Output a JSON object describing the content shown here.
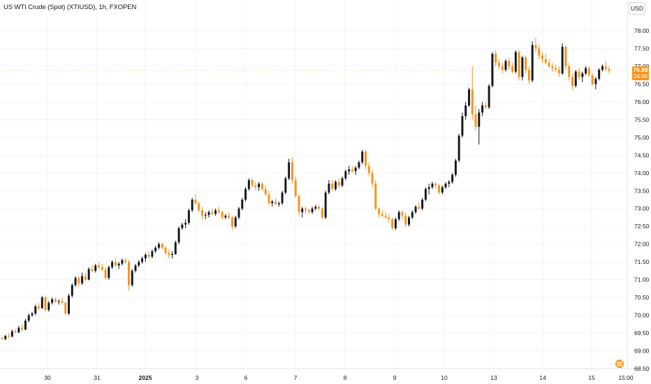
{
  "header": {
    "title": "US WTI Crude (Spot) (XTIUSD), 1h, FXOPEN",
    "currency": "USD"
  },
  "price_tag": {
    "price": "76.88",
    "countdown": "24:06"
  },
  "colors": {
    "up": "#131722",
    "down": "#f7931a",
    "price_line": "#f5d39a",
    "grid": "#f0f3fa",
    "axis_text": "#131722"
  },
  "chart_data": {
    "type": "candlestick",
    "title": "US WTI Crude (Spot) (XTIUSD), 1h, FXOPEN",
    "ylabel": "USD",
    "ylim": [
      68.5,
      78.3
    ],
    "y_ticks": [
      "78.00",
      "77.50",
      "77.00",
      "76.50",
      "76.00",
      "75.50",
      "75.00",
      "74.50",
      "74.00",
      "73.50",
      "73.00",
      "72.50",
      "72.00",
      "71.50",
      "71.00",
      "70.50",
      "70.00",
      "69.50",
      "69.00",
      "68.50"
    ],
    "x_ticks": [
      "30",
      "31",
      "2025",
      "3",
      "6",
      "7",
      "8",
      "9",
      "10",
      "13",
      "14",
      "15",
      "15:00"
    ],
    "last_price": 76.88,
    "ohlc": [
      [
        69.35,
        69.4,
        69.3,
        69.33
      ],
      [
        69.33,
        69.45,
        69.3,
        69.42
      ],
      [
        69.42,
        69.5,
        69.35,
        69.4
      ],
      [
        69.4,
        69.6,
        69.38,
        69.55
      ],
      [
        69.55,
        69.62,
        69.5,
        69.52
      ],
      [
        69.52,
        69.7,
        69.5,
        69.65
      ],
      [
        69.65,
        69.75,
        69.55,
        69.6
      ],
      [
        69.6,
        69.9,
        69.58,
        69.85
      ],
      [
        69.85,
        70.05,
        69.8,
        70.0
      ],
      [
        70.0,
        70.1,
        69.95,
        70.05
      ],
      [
        70.05,
        70.3,
        70.0,
        70.25
      ],
      [
        70.25,
        70.35,
        70.15,
        70.2
      ],
      [
        70.2,
        70.55,
        70.18,
        70.5
      ],
      [
        70.5,
        70.55,
        70.1,
        70.15
      ],
      [
        70.15,
        70.4,
        70.1,
        70.35
      ],
      [
        70.35,
        70.5,
        70.3,
        70.45
      ],
      [
        70.45,
        70.5,
        70.35,
        70.38
      ],
      [
        70.38,
        70.45,
        70.3,
        70.4
      ],
      [
        70.4,
        70.5,
        70.3,
        70.35
      ],
      [
        70.35,
        70.4,
        70.0,
        70.05
      ],
      [
        70.05,
        70.6,
        70.0,
        70.55
      ],
      [
        70.55,
        70.9,
        70.5,
        70.85
      ],
      [
        70.85,
        71.1,
        70.8,
        71.05
      ],
      [
        71.05,
        71.1,
        70.8,
        70.9
      ],
      [
        70.9,
        71.2,
        70.85,
        71.1
      ],
      [
        71.1,
        71.2,
        70.95,
        71.0
      ],
      [
        71.0,
        71.35,
        70.98,
        71.3
      ],
      [
        71.3,
        71.4,
        71.2,
        71.25
      ],
      [
        71.25,
        71.45,
        71.2,
        71.4
      ],
      [
        71.4,
        71.5,
        71.3,
        71.35
      ],
      [
        71.35,
        71.45,
        71.25,
        71.28
      ],
      [
        71.28,
        71.35,
        71.0,
        71.05
      ],
      [
        71.05,
        71.4,
        71.0,
        71.35
      ],
      [
        71.35,
        71.55,
        71.3,
        71.5
      ],
      [
        71.5,
        71.6,
        71.35,
        71.4
      ],
      [
        71.4,
        71.5,
        71.3,
        71.45
      ],
      [
        71.45,
        71.6,
        71.4,
        71.55
      ],
      [
        71.55,
        71.6,
        71.45,
        71.5
      ],
      [
        71.5,
        71.55,
        70.7,
        70.85
      ],
      [
        70.85,
        71.3,
        70.8,
        71.25
      ],
      [
        71.25,
        71.45,
        71.2,
        71.4
      ],
      [
        71.4,
        71.55,
        71.35,
        71.5
      ],
      [
        71.5,
        71.65,
        71.45,
        71.6
      ],
      [
        71.6,
        71.75,
        71.5,
        71.7
      ],
      [
        71.7,
        71.8,
        71.6,
        71.65
      ],
      [
        71.65,
        71.85,
        71.6,
        71.8
      ],
      [
        71.8,
        71.95,
        71.75,
        71.9
      ],
      [
        71.9,
        72.05,
        71.85,
        72.0
      ],
      [
        72.0,
        72.05,
        71.85,
        71.9
      ],
      [
        71.9,
        71.95,
        71.7,
        71.75
      ],
      [
        71.75,
        71.85,
        71.6,
        71.7
      ],
      [
        71.7,
        71.8,
        71.6,
        71.72
      ],
      [
        71.72,
        72.1,
        71.7,
        72.05
      ],
      [
        72.05,
        72.5,
        72.0,
        72.45
      ],
      [
        72.45,
        72.6,
        72.4,
        72.55
      ],
      [
        72.55,
        72.7,
        72.45,
        72.6
      ],
      [
        72.6,
        73.0,
        72.55,
        72.95
      ],
      [
        72.95,
        73.3,
        72.9,
        73.25
      ],
      [
        73.25,
        73.4,
        73.1,
        73.15
      ],
      [
        73.15,
        73.2,
        72.9,
        72.95
      ],
      [
        72.95,
        73.05,
        72.7,
        72.8
      ],
      [
        72.8,
        72.9,
        72.7,
        72.82
      ],
      [
        72.82,
        72.95,
        72.75,
        72.9
      ],
      [
        72.9,
        73.0,
        72.8,
        72.85
      ],
      [
        72.85,
        73.0,
        72.8,
        72.95
      ],
      [
        72.95,
        73.05,
        72.85,
        72.9
      ],
      [
        72.9,
        72.95,
        72.7,
        72.75
      ],
      [
        72.75,
        72.85,
        72.7,
        72.8
      ],
      [
        72.8,
        72.9,
        72.7,
        72.75
      ],
      [
        72.75,
        72.8,
        72.4,
        72.5
      ],
      [
        72.5,
        72.8,
        72.45,
        72.75
      ],
      [
        72.75,
        73.05,
        72.7,
        73.0
      ],
      [
        73.0,
        73.3,
        72.95,
        73.25
      ],
      [
        73.25,
        73.6,
        73.2,
        73.55
      ],
      [
        73.55,
        73.85,
        73.5,
        73.8
      ],
      [
        73.8,
        73.85,
        73.6,
        73.65
      ],
      [
        73.65,
        73.75,
        73.5,
        73.6
      ],
      [
        73.6,
        73.75,
        73.5,
        73.7
      ],
      [
        73.7,
        73.75,
        73.5,
        73.55
      ],
      [
        73.55,
        73.65,
        73.35,
        73.4
      ],
      [
        73.4,
        73.5,
        73.1,
        73.15
      ],
      [
        73.15,
        73.25,
        73.05,
        73.2
      ],
      [
        73.2,
        73.3,
        73.1,
        73.12
      ],
      [
        73.12,
        73.2,
        73.05,
        73.15
      ],
      [
        73.15,
        73.5,
        73.1,
        73.45
      ],
      [
        73.45,
        73.9,
        73.4,
        73.85
      ],
      [
        73.85,
        74.4,
        73.8,
        74.3
      ],
      [
        74.3,
        74.45,
        73.7,
        73.8
      ],
      [
        73.8,
        73.9,
        73.3,
        73.35
      ],
      [
        73.35,
        73.4,
        72.8,
        72.9
      ],
      [
        72.9,
        73.05,
        72.75,
        73.0
      ],
      [
        73.0,
        73.05,
        72.85,
        72.95
      ],
      [
        72.95,
        73.0,
        72.85,
        72.9
      ],
      [
        72.9,
        73.05,
        72.85,
        73.0
      ],
      [
        73.0,
        73.1,
        72.95,
        73.05
      ],
      [
        73.05,
        73.1,
        72.95,
        73.0
      ],
      [
        73.0,
        73.05,
        72.7,
        72.75
      ],
      [
        72.75,
        73.5,
        72.7,
        73.45
      ],
      [
        73.45,
        73.8,
        73.4,
        73.7
      ],
      [
        73.7,
        73.8,
        73.5,
        73.55
      ],
      [
        73.55,
        73.8,
        73.5,
        73.75
      ],
      [
        73.75,
        73.85,
        73.6,
        73.65
      ],
      [
        73.65,
        73.9,
        73.6,
        73.85
      ],
      [
        73.85,
        74.1,
        73.8,
        74.05
      ],
      [
        74.05,
        74.2,
        73.95,
        74.1
      ],
      [
        74.1,
        74.2,
        74.0,
        74.05
      ],
      [
        74.05,
        74.2,
        73.95,
        74.15
      ],
      [
        74.15,
        74.35,
        74.1,
        74.3
      ],
      [
        74.3,
        74.65,
        74.25,
        74.6
      ],
      [
        74.6,
        74.65,
        74.1,
        74.2
      ],
      [
        74.2,
        74.3,
        73.9,
        74.0
      ],
      [
        74.0,
        74.1,
        73.6,
        73.7
      ],
      [
        73.7,
        73.8,
        72.95,
        73.0
      ],
      [
        73.0,
        73.05,
        72.75,
        72.85
      ],
      [
        72.85,
        72.95,
        72.75,
        72.8
      ],
      [
        72.8,
        72.9,
        72.7,
        72.75
      ],
      [
        72.75,
        72.85,
        72.6,
        72.7
      ],
      [
        72.7,
        72.75,
        72.4,
        72.45
      ],
      [
        72.45,
        72.75,
        72.4,
        72.7
      ],
      [
        72.7,
        72.95,
        72.65,
        72.9
      ],
      [
        72.9,
        72.95,
        72.7,
        72.8
      ],
      [
        72.8,
        72.9,
        72.5,
        72.55
      ],
      [
        72.55,
        72.8,
        72.5,
        72.75
      ],
      [
        72.75,
        72.95,
        72.7,
        72.9
      ],
      [
        72.9,
        73.1,
        72.85,
        73.05
      ],
      [
        73.05,
        73.2,
        72.95,
        73.0
      ],
      [
        73.0,
        73.3,
        72.95,
        73.25
      ],
      [
        73.25,
        73.6,
        73.2,
        73.55
      ],
      [
        73.55,
        73.7,
        73.4,
        73.6
      ],
      [
        73.6,
        73.75,
        73.55,
        73.7
      ],
      [
        73.7,
        73.75,
        73.55,
        73.65
      ],
      [
        73.65,
        73.7,
        73.4,
        73.45
      ],
      [
        73.45,
        73.65,
        73.4,
        73.6
      ],
      [
        73.6,
        73.75,
        73.55,
        73.7
      ],
      [
        73.7,
        73.8,
        73.6,
        73.75
      ],
      [
        73.75,
        74.0,
        73.7,
        73.95
      ],
      [
        73.95,
        74.4,
        73.9,
        74.35
      ],
      [
        74.35,
        75.1,
        74.3,
        75.05
      ],
      [
        75.05,
        75.7,
        75.0,
        75.6
      ],
      [
        75.6,
        76.0,
        75.5,
        75.9
      ],
      [
        75.9,
        76.4,
        75.85,
        76.35
      ],
      [
        76.35,
        77.0,
        75.5,
        75.65
      ],
      [
        75.65,
        75.9,
        75.2,
        75.3
      ],
      [
        75.3,
        75.8,
        74.8,
        75.7
      ],
      [
        75.7,
        76.0,
        75.6,
        75.9
      ],
      [
        75.9,
        76.0,
        75.8,
        75.85
      ],
      [
        75.85,
        76.5,
        75.8,
        76.45
      ],
      [
        76.45,
        77.4,
        76.4,
        77.35
      ],
      [
        77.35,
        77.45,
        77.0,
        77.1
      ],
      [
        77.1,
        77.2,
        76.9,
        77.0
      ],
      [
        77.0,
        77.1,
        76.8,
        76.9
      ],
      [
        76.9,
        77.2,
        76.85,
        77.15
      ],
      [
        77.15,
        77.25,
        76.9,
        77.0
      ],
      [
        77.0,
        77.1,
        76.8,
        76.85
      ],
      [
        76.85,
        77.45,
        76.8,
        77.4
      ],
      [
        77.4,
        77.45,
        76.6,
        76.7
      ],
      [
        76.7,
        77.3,
        76.6,
        77.25
      ],
      [
        77.25,
        77.3,
        76.8,
        76.9
      ],
      [
        76.9,
        77.0,
        76.5,
        76.6
      ],
      [
        76.6,
        77.7,
        76.55,
        77.6
      ],
      [
        77.6,
        77.8,
        77.4,
        77.5
      ],
      [
        77.5,
        77.6,
        77.2,
        77.3
      ],
      [
        77.3,
        77.4,
        77.1,
        77.2
      ],
      [
        77.2,
        77.35,
        77.05,
        77.1
      ],
      [
        77.1,
        77.2,
        76.95,
        77.0
      ],
      [
        77.0,
        77.1,
        76.85,
        76.95
      ],
      [
        76.95,
        77.05,
        76.85,
        76.9
      ],
      [
        76.9,
        77.0,
        76.7,
        76.8
      ],
      [
        76.8,
        77.65,
        76.75,
        77.55
      ],
      [
        77.55,
        77.6,
        76.9,
        77.0
      ],
      [
        77.0,
        77.1,
        76.6,
        76.7
      ],
      [
        76.7,
        76.8,
        76.35,
        76.45
      ],
      [
        76.45,
        76.9,
        76.4,
        76.85
      ],
      [
        76.85,
        76.95,
        76.6,
        76.7
      ],
      [
        76.7,
        76.85,
        76.55,
        76.8
      ],
      [
        76.8,
        77.0,
        76.75,
        76.95
      ],
      [
        76.95,
        77.0,
        76.7,
        76.75
      ],
      [
        76.75,
        76.8,
        76.45,
        76.5
      ],
      [
        76.5,
        76.7,
        76.35,
        76.65
      ],
      [
        76.65,
        76.95,
        76.6,
        76.9
      ],
      [
        76.9,
        77.05,
        76.85,
        77.0
      ],
      [
        77.0,
        77.15,
        76.85,
        76.92
      ],
      [
        76.92,
        77.0,
        76.8,
        76.88
      ]
    ]
  }
}
